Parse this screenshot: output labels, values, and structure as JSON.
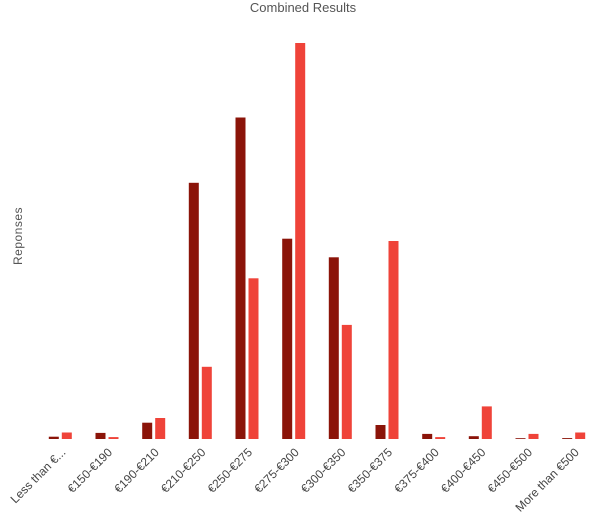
{
  "chart_data": {
    "type": "bar",
    "title": "Combined Results",
    "xlabel": "",
    "ylabel": "Reponses",
    "categories": [
      "Less than €...",
      "€150-€190",
      "€190-€210",
      "€210-€250",
      "€250-€275",
      "€275-€300",
      "€300-€350",
      "€350-€375",
      "€375-€400",
      "€400-€450",
      "€450-€500",
      "More than €500"
    ],
    "series": [
      {
        "values": [
          0.5,
          1.3,
          3.5,
          55,
          69,
          43,
          39,
          3,
          1.1,
          0.6,
          0.1,
          0.2
        ],
        "color": "#8B1409"
      },
      {
        "values": [
          1.4,
          0.4,
          4.5,
          15.5,
          34.5,
          85,
          24.5,
          42.5,
          0.4,
          7,
          1.1,
          1.4
        ],
        "color": "#EF4339"
      }
    ],
    "ylim": [
      0,
      85
    ],
    "grid": false,
    "legend": "none"
  }
}
